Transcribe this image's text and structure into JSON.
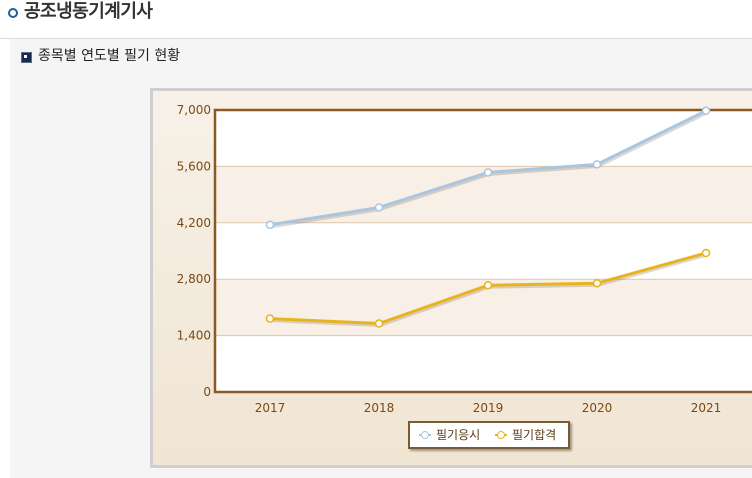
{
  "page": {
    "title": "공조냉동기계기사"
  },
  "section": {
    "title": "종목별 연도별 필기 현황"
  },
  "colors": {
    "series_apply": "#a9c6e0",
    "series_pass": "#e8b41e",
    "plot_border": "#8b5a22",
    "band": "#f8efe6"
  },
  "icons": {
    "title_bullet": "circle-bullet-icon",
    "section_bullet": "square-bullet-icon"
  },
  "chart_data": {
    "type": "line",
    "categories": [
      "2017",
      "2018",
      "2019",
      "2020",
      "2021"
    ],
    "ylim": [
      0,
      7000
    ],
    "yticks": [
      0,
      1400,
      2800,
      4200,
      5600,
      7000
    ],
    "ytick_labels": [
      "0",
      "1,400",
      "2,800",
      "4,200",
      "5,600",
      "7,000"
    ],
    "series": [
      {
        "name": "필기응시",
        "values": [
          4150,
          4580,
          5450,
          5650,
          6980
        ]
      },
      {
        "name": "필기합격",
        "values": [
          1820,
          1700,
          2650,
          2700,
          3450
        ]
      }
    ],
    "legend": "bottom-center",
    "grid": true
  }
}
